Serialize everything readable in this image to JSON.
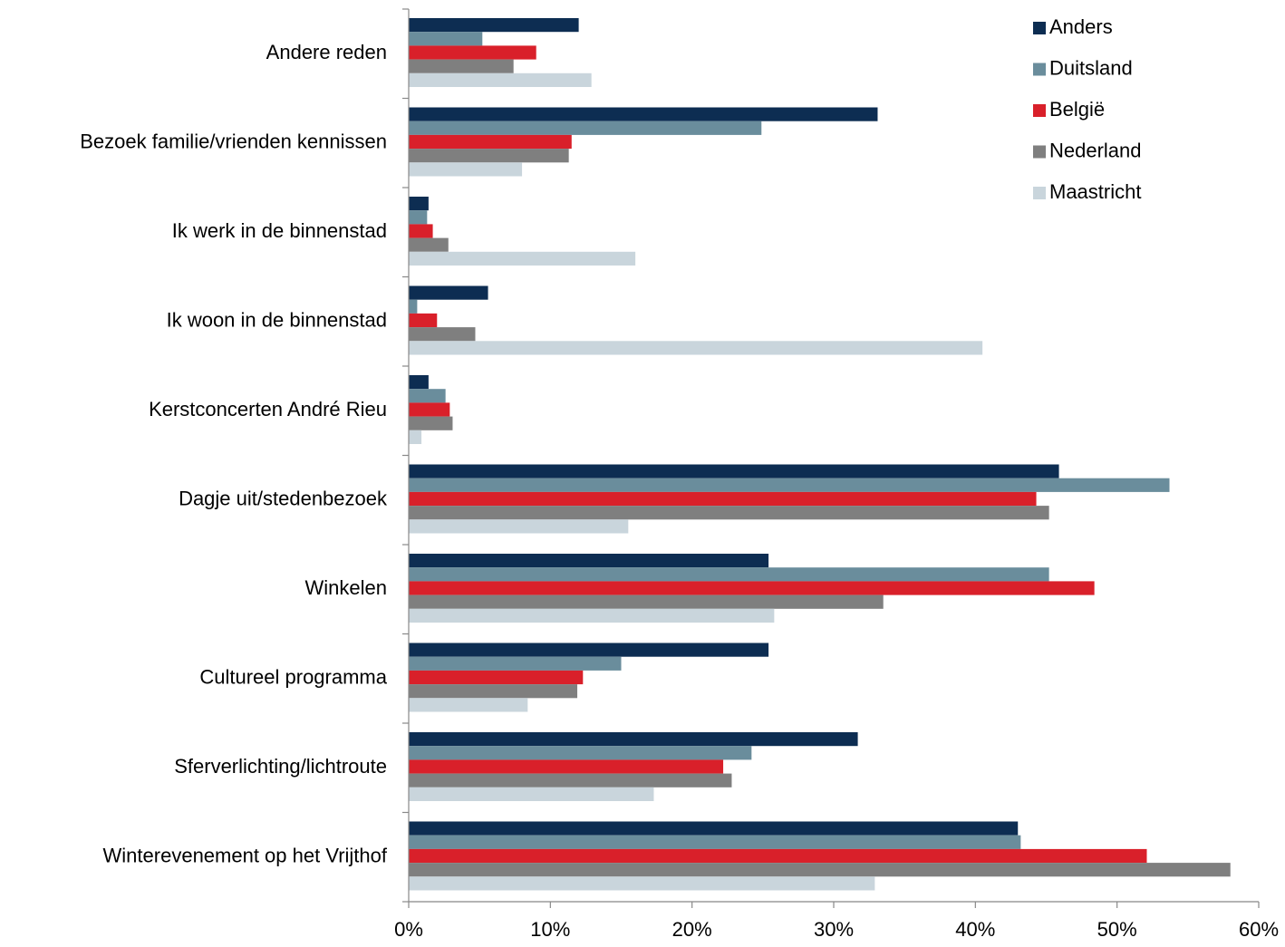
{
  "chart_data": {
    "type": "bar",
    "orientation": "horizontal",
    "categories": [
      "Andere reden",
      "Bezoek familie/vrienden kennissen",
      "Ik werk in de binnenstad",
      "Ik woon in de binnenstad",
      "Kerstconcerten André Rieu",
      "Dagje uit/stedenbezoek",
      "Winkelen",
      "Cultureel programma",
      "Sferverlichting/lichtroute",
      "Winterevenement op het Vrijthof"
    ],
    "series": [
      {
        "name": "Anders",
        "color": "#0d2d52",
        "values": [
          12.0,
          33.1,
          1.4,
          5.6,
          1.4,
          45.9,
          25.4,
          25.4,
          31.7,
          43.0
        ]
      },
      {
        "name": "Duitsland",
        "color": "#6a8d9c",
        "values": [
          5.2,
          24.9,
          1.3,
          0.6,
          2.6,
          53.7,
          45.2,
          15.0,
          24.2,
          43.2
        ]
      },
      {
        "name": "België",
        "color": "#d9202a",
        "values": [
          9.0,
          11.5,
          1.7,
          2.0,
          2.9,
          44.3,
          48.4,
          12.3,
          22.2,
          52.1
        ]
      },
      {
        "name": "Nederland",
        "color": "#7f7f7f",
        "values": [
          7.4,
          11.3,
          2.8,
          4.7,
          3.1,
          45.2,
          33.5,
          11.9,
          22.8,
          58.0
        ]
      },
      {
        "name": "Maastricht",
        "color": "#c9d5dc",
        "values": [
          12.9,
          8.0,
          16.0,
          40.5,
          0.9,
          15.5,
          25.8,
          8.4,
          17.3,
          32.9
        ]
      }
    ],
    "xlim": [
      0,
      60
    ],
    "xticks": [
      {
        "value": 0,
        "label": "0%"
      },
      {
        "value": 10,
        "label": "10%"
      },
      {
        "value": 20,
        "label": "20%"
      },
      {
        "value": 30,
        "label": "30%"
      },
      {
        "value": 40,
        "label": "40%"
      },
      {
        "value": 50,
        "label": "50%"
      },
      {
        "value": 60,
        "label": "60%"
      }
    ],
    "grid": false,
    "legend": "top-right"
  }
}
